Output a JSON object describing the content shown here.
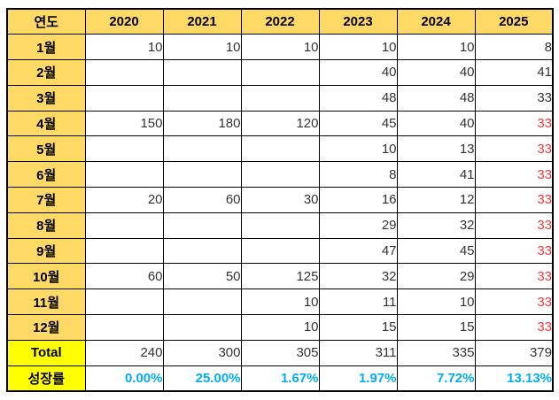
{
  "table": {
    "corner_label": "연도",
    "years": [
      "2020",
      "2021",
      "2022",
      "2023",
      "2024",
      "2025"
    ],
    "month_rows": [
      {
        "label": "1월",
        "values": [
          "10",
          "10",
          "10",
          "10",
          "10",
          "8"
        ],
        "red_indices": []
      },
      {
        "label": "2월",
        "values": [
          "",
          "",
          "",
          "40",
          "40",
          "41"
        ],
        "red_indices": []
      },
      {
        "label": "3월",
        "values": [
          "",
          "",
          "",
          "48",
          "48",
          "33"
        ],
        "red_indices": []
      },
      {
        "label": "4월",
        "values": [
          "150",
          "180",
          "120",
          "45",
          "40",
          "33"
        ],
        "red_indices": [
          5
        ]
      },
      {
        "label": "5월",
        "values": [
          "",
          "",
          "",
          "10",
          "13",
          "33"
        ],
        "red_indices": [
          5
        ]
      },
      {
        "label": "6월",
        "values": [
          "",
          "",
          "",
          "8",
          "41",
          "33"
        ],
        "red_indices": [
          5
        ]
      },
      {
        "label": "7월",
        "values": [
          "20",
          "60",
          "30",
          "16",
          "12",
          "33"
        ],
        "red_indices": [
          5
        ]
      },
      {
        "label": "8월",
        "values": [
          "",
          "",
          "",
          "29",
          "32",
          "33"
        ],
        "red_indices": [
          5
        ]
      },
      {
        "label": "9월",
        "values": [
          "",
          "",
          "",
          "47",
          "45",
          "33"
        ],
        "red_indices": [
          5
        ]
      },
      {
        "label": "10월",
        "values": [
          "60",
          "50",
          "125",
          "32",
          "29",
          "33"
        ],
        "red_indices": [
          5
        ]
      },
      {
        "label": "11월",
        "values": [
          "",
          "",
          "10",
          "11",
          "10",
          "33"
        ],
        "red_indices": [
          5
        ]
      },
      {
        "label": "12월",
        "values": [
          "",
          "",
          "10",
          "15",
          "15",
          "33"
        ],
        "red_indices": [
          5
        ]
      }
    ],
    "total_row": {
      "label": "Total",
      "values": [
        "240",
        "300",
        "305",
        "311",
        "335",
        "379"
      ]
    },
    "growth_row": {
      "label": "성장률",
      "values": [
        "0.00%",
        "25.00%",
        "1.67%",
        "1.97%",
        "7.72%",
        "13.13%"
      ]
    }
  },
  "colors": {
    "header_bg": "#FFD966",
    "summary_label_bg": "#FFFF00",
    "growth_text": "#00AEEF",
    "alert_text": "#F03B3B",
    "number_text": "#333333",
    "border": "#000000"
  }
}
